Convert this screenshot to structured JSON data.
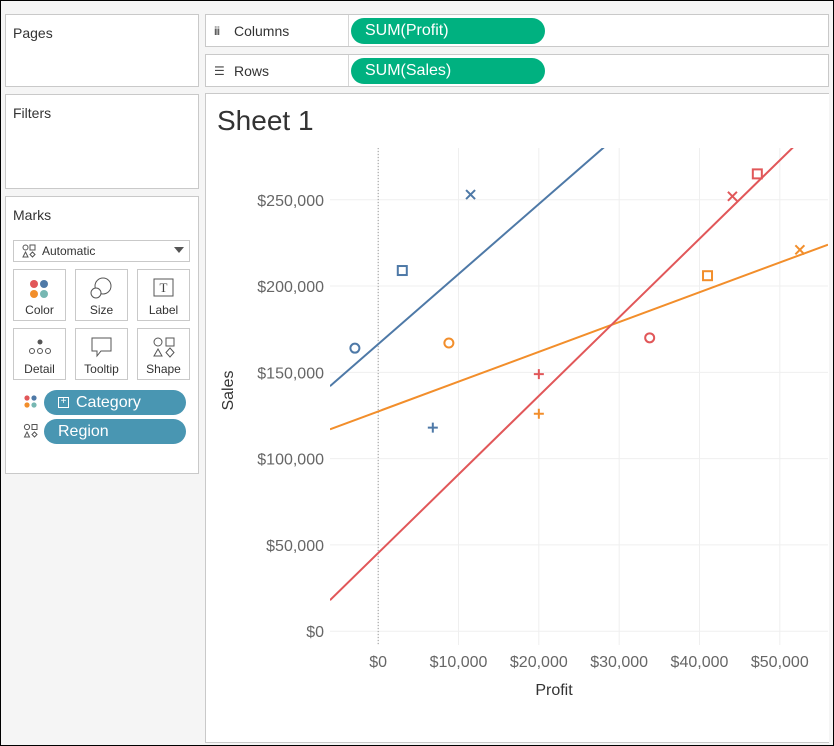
{
  "shelves": {
    "pages_label": "Pages",
    "filters_label": "Filters",
    "columns_label": "Columns",
    "columns_pill": "SUM(Profit)",
    "rows_label": "Rows",
    "rows_pill": "SUM(Sales)"
  },
  "marks": {
    "title": "Marks",
    "mark_type": "Automatic",
    "buttons": [
      "Color",
      "Size",
      "Label",
      "Detail",
      "Tooltip",
      "Shape"
    ],
    "color_pill": "Category",
    "shape_pill": "Region"
  },
  "sheet": {
    "title": "Sheet 1"
  },
  "colors": {
    "green": "#00b180",
    "pill_blue": "#4996b2",
    "series1": "#4e79a7",
    "series2": "#f28e2b",
    "series3": "#e15759"
  },
  "chart_data": {
    "type": "scatter",
    "xlabel": "Profit",
    "ylabel": "Sales",
    "xlim": [
      -6000,
      56000
    ],
    "ylim": [
      -8000,
      280000
    ],
    "x_ticks": [
      {
        "value": 0,
        "label": "$0"
      },
      {
        "value": 10000,
        "label": "$10,000"
      },
      {
        "value": 20000,
        "label": "$20,000"
      },
      {
        "value": 30000,
        "label": "$30,000"
      },
      {
        "value": 40000,
        "label": "$40,000"
      },
      {
        "value": 50000,
        "label": "$50,000"
      }
    ],
    "y_ticks": [
      {
        "value": 0,
        "label": "$0"
      },
      {
        "value": 50000,
        "label": "$50,000"
      },
      {
        "value": 100000,
        "label": "$100,000"
      },
      {
        "value": 150000,
        "label": "$150,000"
      },
      {
        "value": 200000,
        "label": "$200,000"
      },
      {
        "value": 250000,
        "label": "$250,000"
      }
    ],
    "series": [
      {
        "color": "#4e79a7",
        "points": [
          {
            "x": -2900,
            "y": 164000,
            "shape": "circle"
          },
          {
            "x": 3000,
            "y": 209000,
            "shape": "square"
          },
          {
            "x": 6800,
            "y": 118000,
            "shape": "plus"
          },
          {
            "x": 11500,
            "y": 253000,
            "shape": "cross"
          }
        ],
        "trend": [
          {
            "x": -6000,
            "y": 142000
          },
          {
            "x": 28500,
            "y": 282000
          }
        ]
      },
      {
        "color": "#f28e2b",
        "points": [
          {
            "x": 8800,
            "y": 167000,
            "shape": "circle"
          },
          {
            "x": 41000,
            "y": 206000,
            "shape": "square"
          },
          {
            "x": 20000,
            "y": 126000,
            "shape": "plus"
          },
          {
            "x": 52500,
            "y": 221000,
            "shape": "cross"
          }
        ],
        "trend": [
          {
            "x": -6000,
            "y": 117000
          },
          {
            "x": 56000,
            "y": 224000
          }
        ]
      },
      {
        "color": "#e15759",
        "points": [
          {
            "x": 33800,
            "y": 170000,
            "shape": "circle"
          },
          {
            "x": 47200,
            "y": 265000,
            "shape": "square"
          },
          {
            "x": 20000,
            "y": 149000,
            "shape": "plus"
          },
          {
            "x": 44100,
            "y": 252000,
            "shape": "cross"
          }
        ],
        "trend": [
          {
            "x": -6000,
            "y": 18000
          },
          {
            "x": 52000,
            "y": 282000
          }
        ]
      }
    ]
  }
}
